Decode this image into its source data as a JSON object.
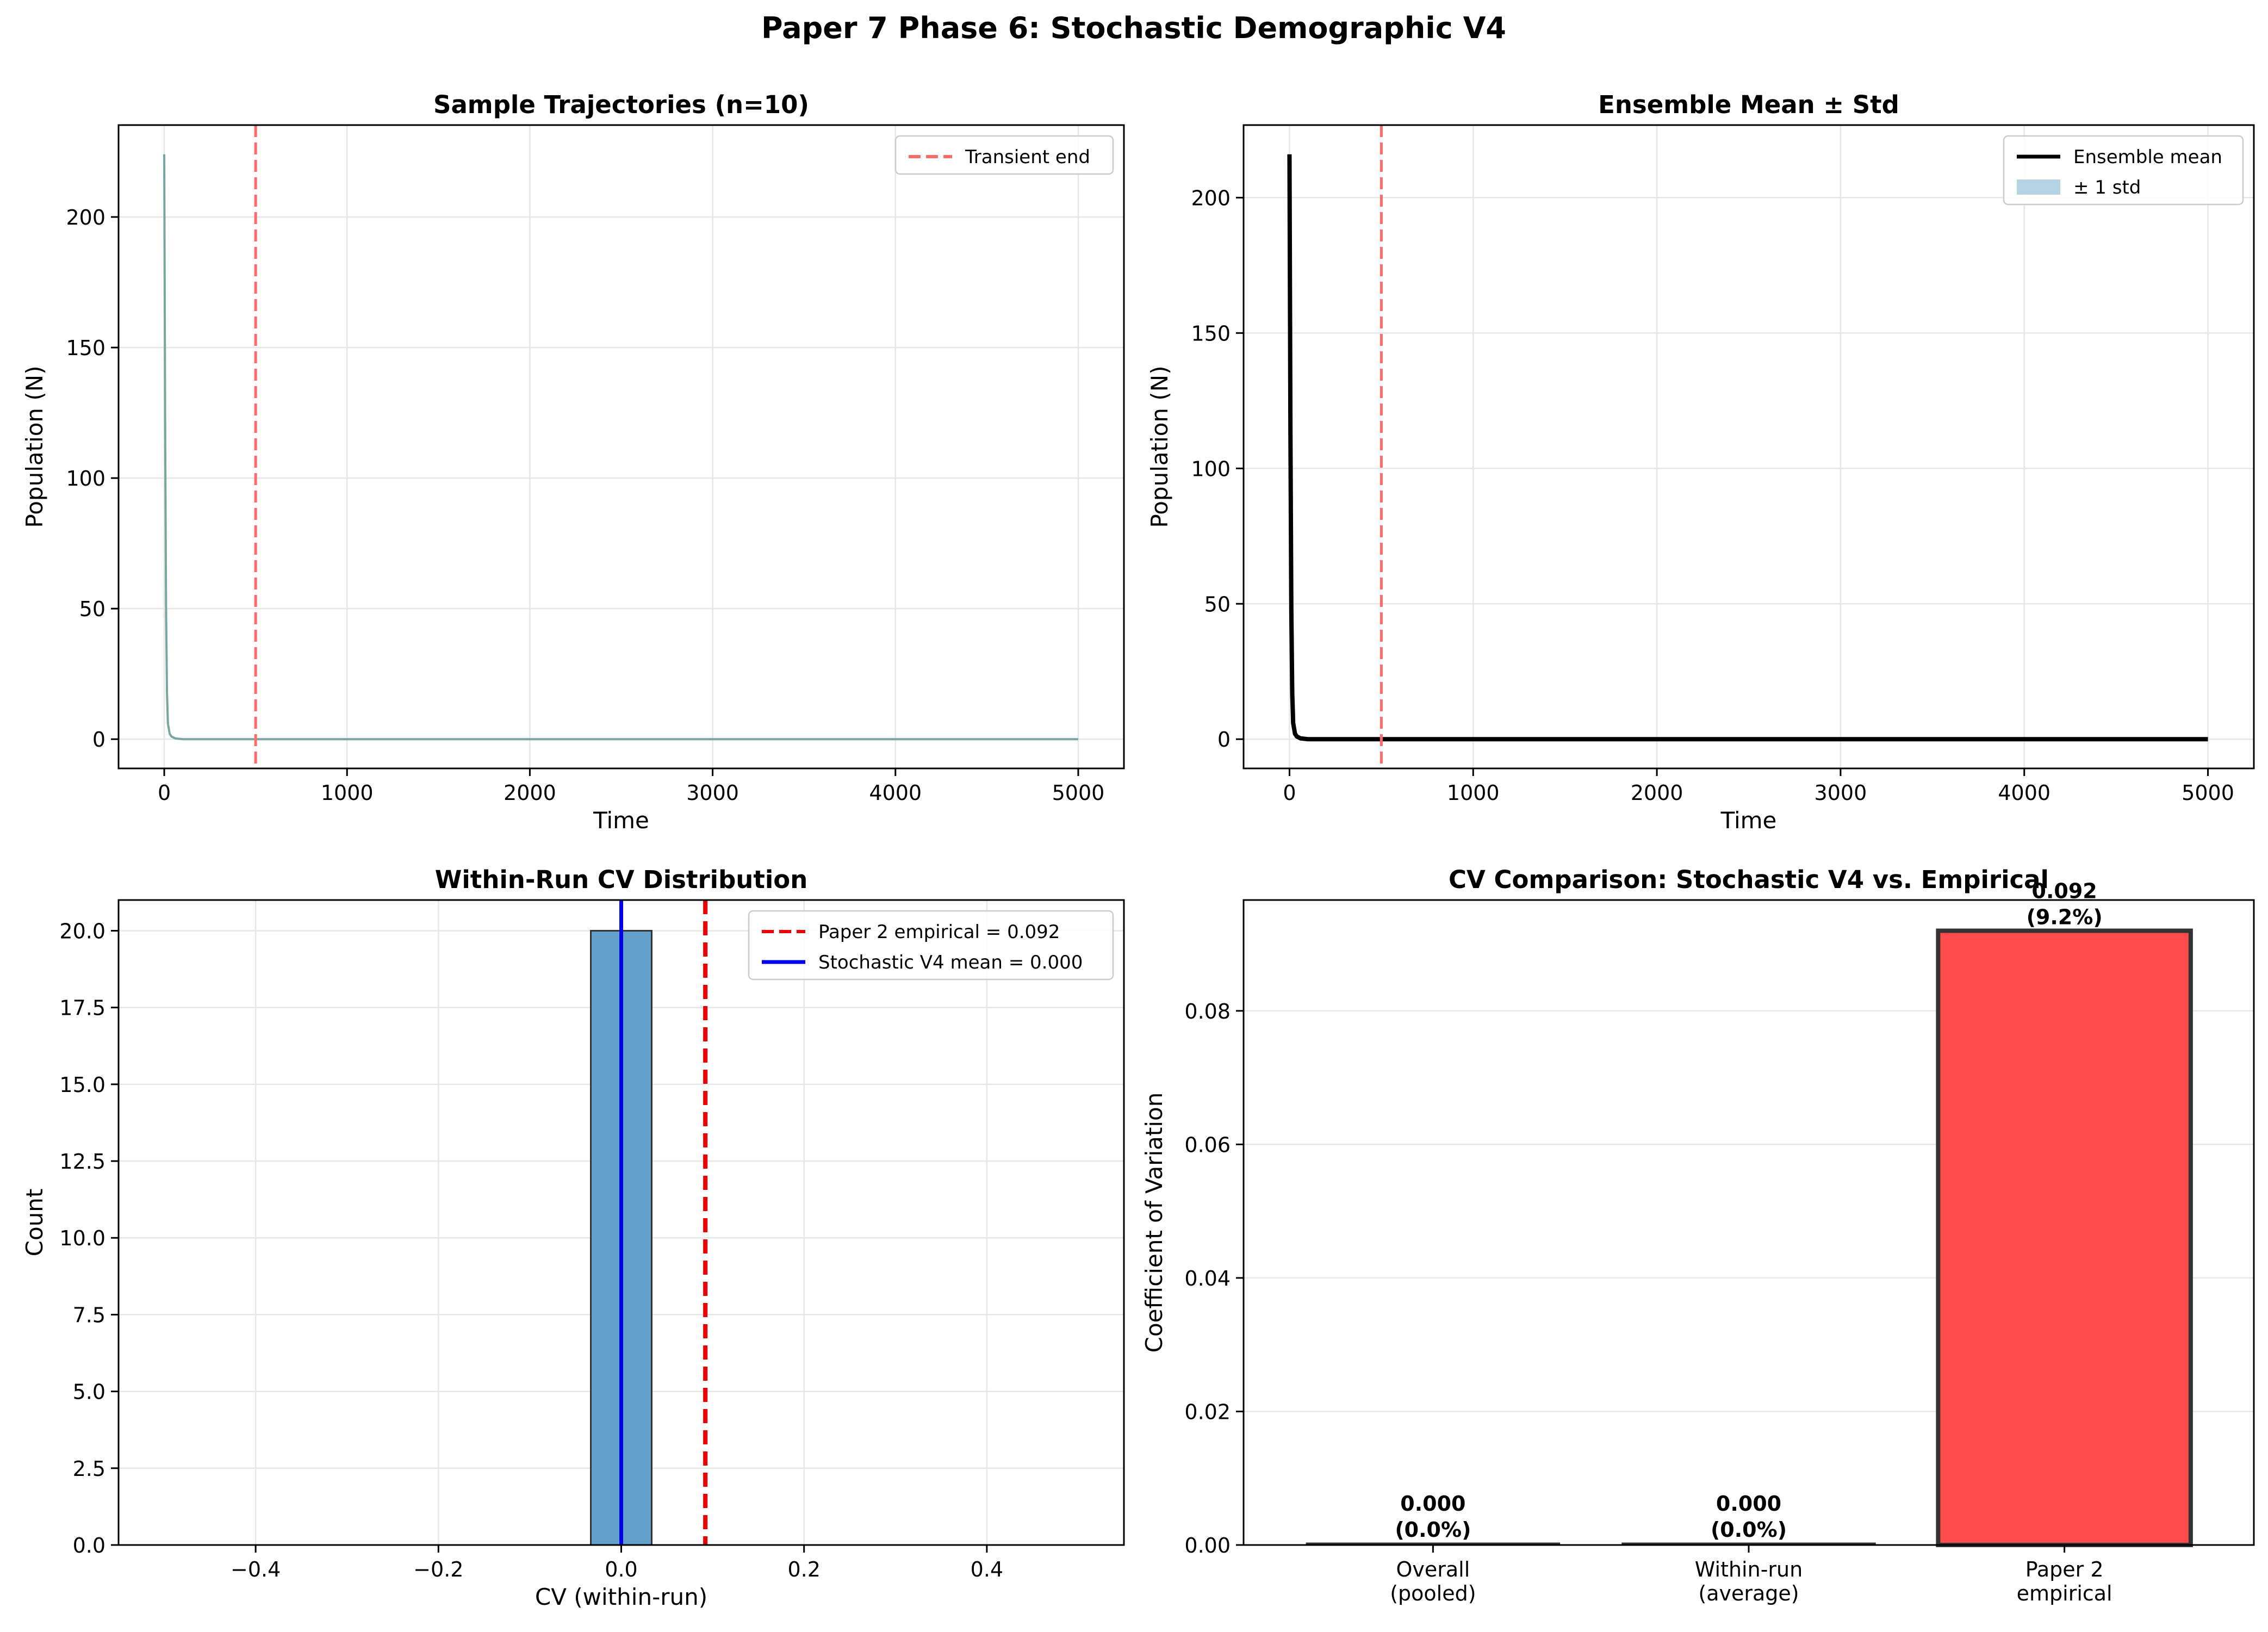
{
  "suptitle": "Paper 7 Phase 6: Stochastic Demographic V4",
  "colors": {
    "trajectory": "#7aa6a0",
    "mean": "#000000",
    "band": "#b5d3e3",
    "transient": "#ff6b6b",
    "empirical": "#ee0000",
    "v4mean": "#0000ee",
    "hist": "#64a0cc",
    "bar_red": "#ff4b4b",
    "grid": "#e6e6e6"
  },
  "chart_data": [
    {
      "type": "line",
      "title": "Sample Trajectories (n=10)",
      "xlabel": "Time",
      "ylabel": "Population (N)",
      "xlim": [
        -250,
        5250
      ],
      "ylim": [
        -11.2,
        235.2
      ],
      "xticks": [
        0,
        1000,
        2000,
        3000,
        4000,
        5000
      ],
      "xtick_labels": [
        "0",
        "1000",
        "2000",
        "3000",
        "4000",
        "5000"
      ],
      "yticks": [
        0,
        50,
        100,
        150,
        200
      ],
      "ytick_labels": [
        "0",
        "50",
        "100",
        "150",
        "200"
      ],
      "grid": true,
      "legend": {
        "placement": "top-right",
        "entries": [
          {
            "label": "Transient end",
            "style": "dashed",
            "color": "#ff6b6b"
          }
        ]
      },
      "vline": {
        "x": 500
      },
      "series": [
        {
          "x": [
            0,
            5,
            10,
            15,
            20,
            30,
            40,
            60,
            100,
            5000
          ],
          "y": [
            224,
            120,
            50,
            18,
            6,
            2,
            1,
            0.3,
            0,
            0
          ]
        }
      ]
    },
    {
      "type": "area",
      "title": "Ensemble Mean ± Std",
      "xlabel": "Time",
      "ylabel": "Population (N)",
      "xlim": [
        -250,
        5250
      ],
      "ylim": [
        -10.8,
        226.8
      ],
      "xticks": [
        0,
        1000,
        2000,
        3000,
        4000,
        5000
      ],
      "xtick_labels": [
        "0",
        "1000",
        "2000",
        "3000",
        "4000",
        "5000"
      ],
      "yticks": [
        0,
        50,
        100,
        150,
        200
      ],
      "ytick_labels": [
        "0",
        "50",
        "100",
        "150",
        "200"
      ],
      "grid": true,
      "legend": {
        "placement": "top-right",
        "entries": [
          {
            "label": "Ensemble mean",
            "style": "line",
            "color": "#000000"
          },
          {
            "label": "± 1 std",
            "style": "patch",
            "color": "#b5d3e3"
          }
        ]
      },
      "vline": {
        "x": 500
      },
      "series": [
        {
          "name": "Ensemble mean",
          "x": [
            0,
            5,
            10,
            15,
            20,
            30,
            40,
            60,
            100,
            5000
          ],
          "y": [
            216,
            115,
            48,
            17,
            6,
            2,
            1,
            0.3,
            0,
            0
          ]
        }
      ]
    },
    {
      "type": "bar",
      "title": "Within-Run CV Distribution",
      "xlabel": "CV (within-run)",
      "ylabel": "Count",
      "xlim": [
        -0.55,
        0.55
      ],
      "ylim": [
        0,
        21
      ],
      "xticks": [
        -0.4,
        -0.2,
        0.0,
        0.2,
        0.4
      ],
      "xtick_labels": [
        "−0.4",
        "−0.2",
        "0.0",
        "0.2",
        "0.4"
      ],
      "yticks": [
        0,
        2.5,
        5,
        7.5,
        10,
        12.5,
        15,
        17.5,
        20
      ],
      "ytick_labels": [
        "0.0",
        "2.5",
        "5.0",
        "7.5",
        "10.0",
        "12.5",
        "15.0",
        "17.5",
        "20.0"
      ],
      "grid": true,
      "legend": {
        "placement": "top-right",
        "entries": [
          {
            "label": "Paper 2 empirical = 0.092",
            "style": "dashed",
            "color": "#ee0000"
          },
          {
            "label": "Stochastic V4 mean = 0.000",
            "style": "line",
            "color": "#0000ee"
          }
        ]
      },
      "bins": [
        {
          "x0": -0.0333,
          "x1": 0.0333,
          "count": 20
        }
      ],
      "vlines": [
        {
          "x": 0.092,
          "style": "dashed"
        },
        {
          "x": 0.0,
          "style": "solid"
        }
      ]
    },
    {
      "type": "bar",
      "title": "CV Comparison: Stochastic V4 vs. Empirical",
      "xlabel": "",
      "ylabel": "Coefficient of Variation",
      "ylim": [
        0,
        0.0966
      ],
      "yticks": [
        0,
        0.02,
        0.04,
        0.06,
        0.08
      ],
      "ytick_labels": [
        "0.00",
        "0.02",
        "0.04",
        "0.06",
        "0.08"
      ],
      "grid": true,
      "categories": [
        {
          "line1": "Overall",
          "line2": "(pooled)"
        },
        {
          "line1": "Within-run",
          "line2": "(average)"
        },
        {
          "line1": "Paper 2",
          "line2": "empirical"
        }
      ],
      "values": [
        0.0,
        0.0,
        0.092
      ],
      "value_labels": [
        {
          "line1": "0.000",
          "line2": "(0.0%)"
        },
        {
          "line1": "0.000",
          "line2": "(0.0%)"
        },
        {
          "line1": "0.092",
          "line2": "(9.2%)"
        }
      ],
      "bar_colors": [
        "#1f77b4",
        "#2ca02c",
        "#ff4b4b"
      ]
    }
  ]
}
